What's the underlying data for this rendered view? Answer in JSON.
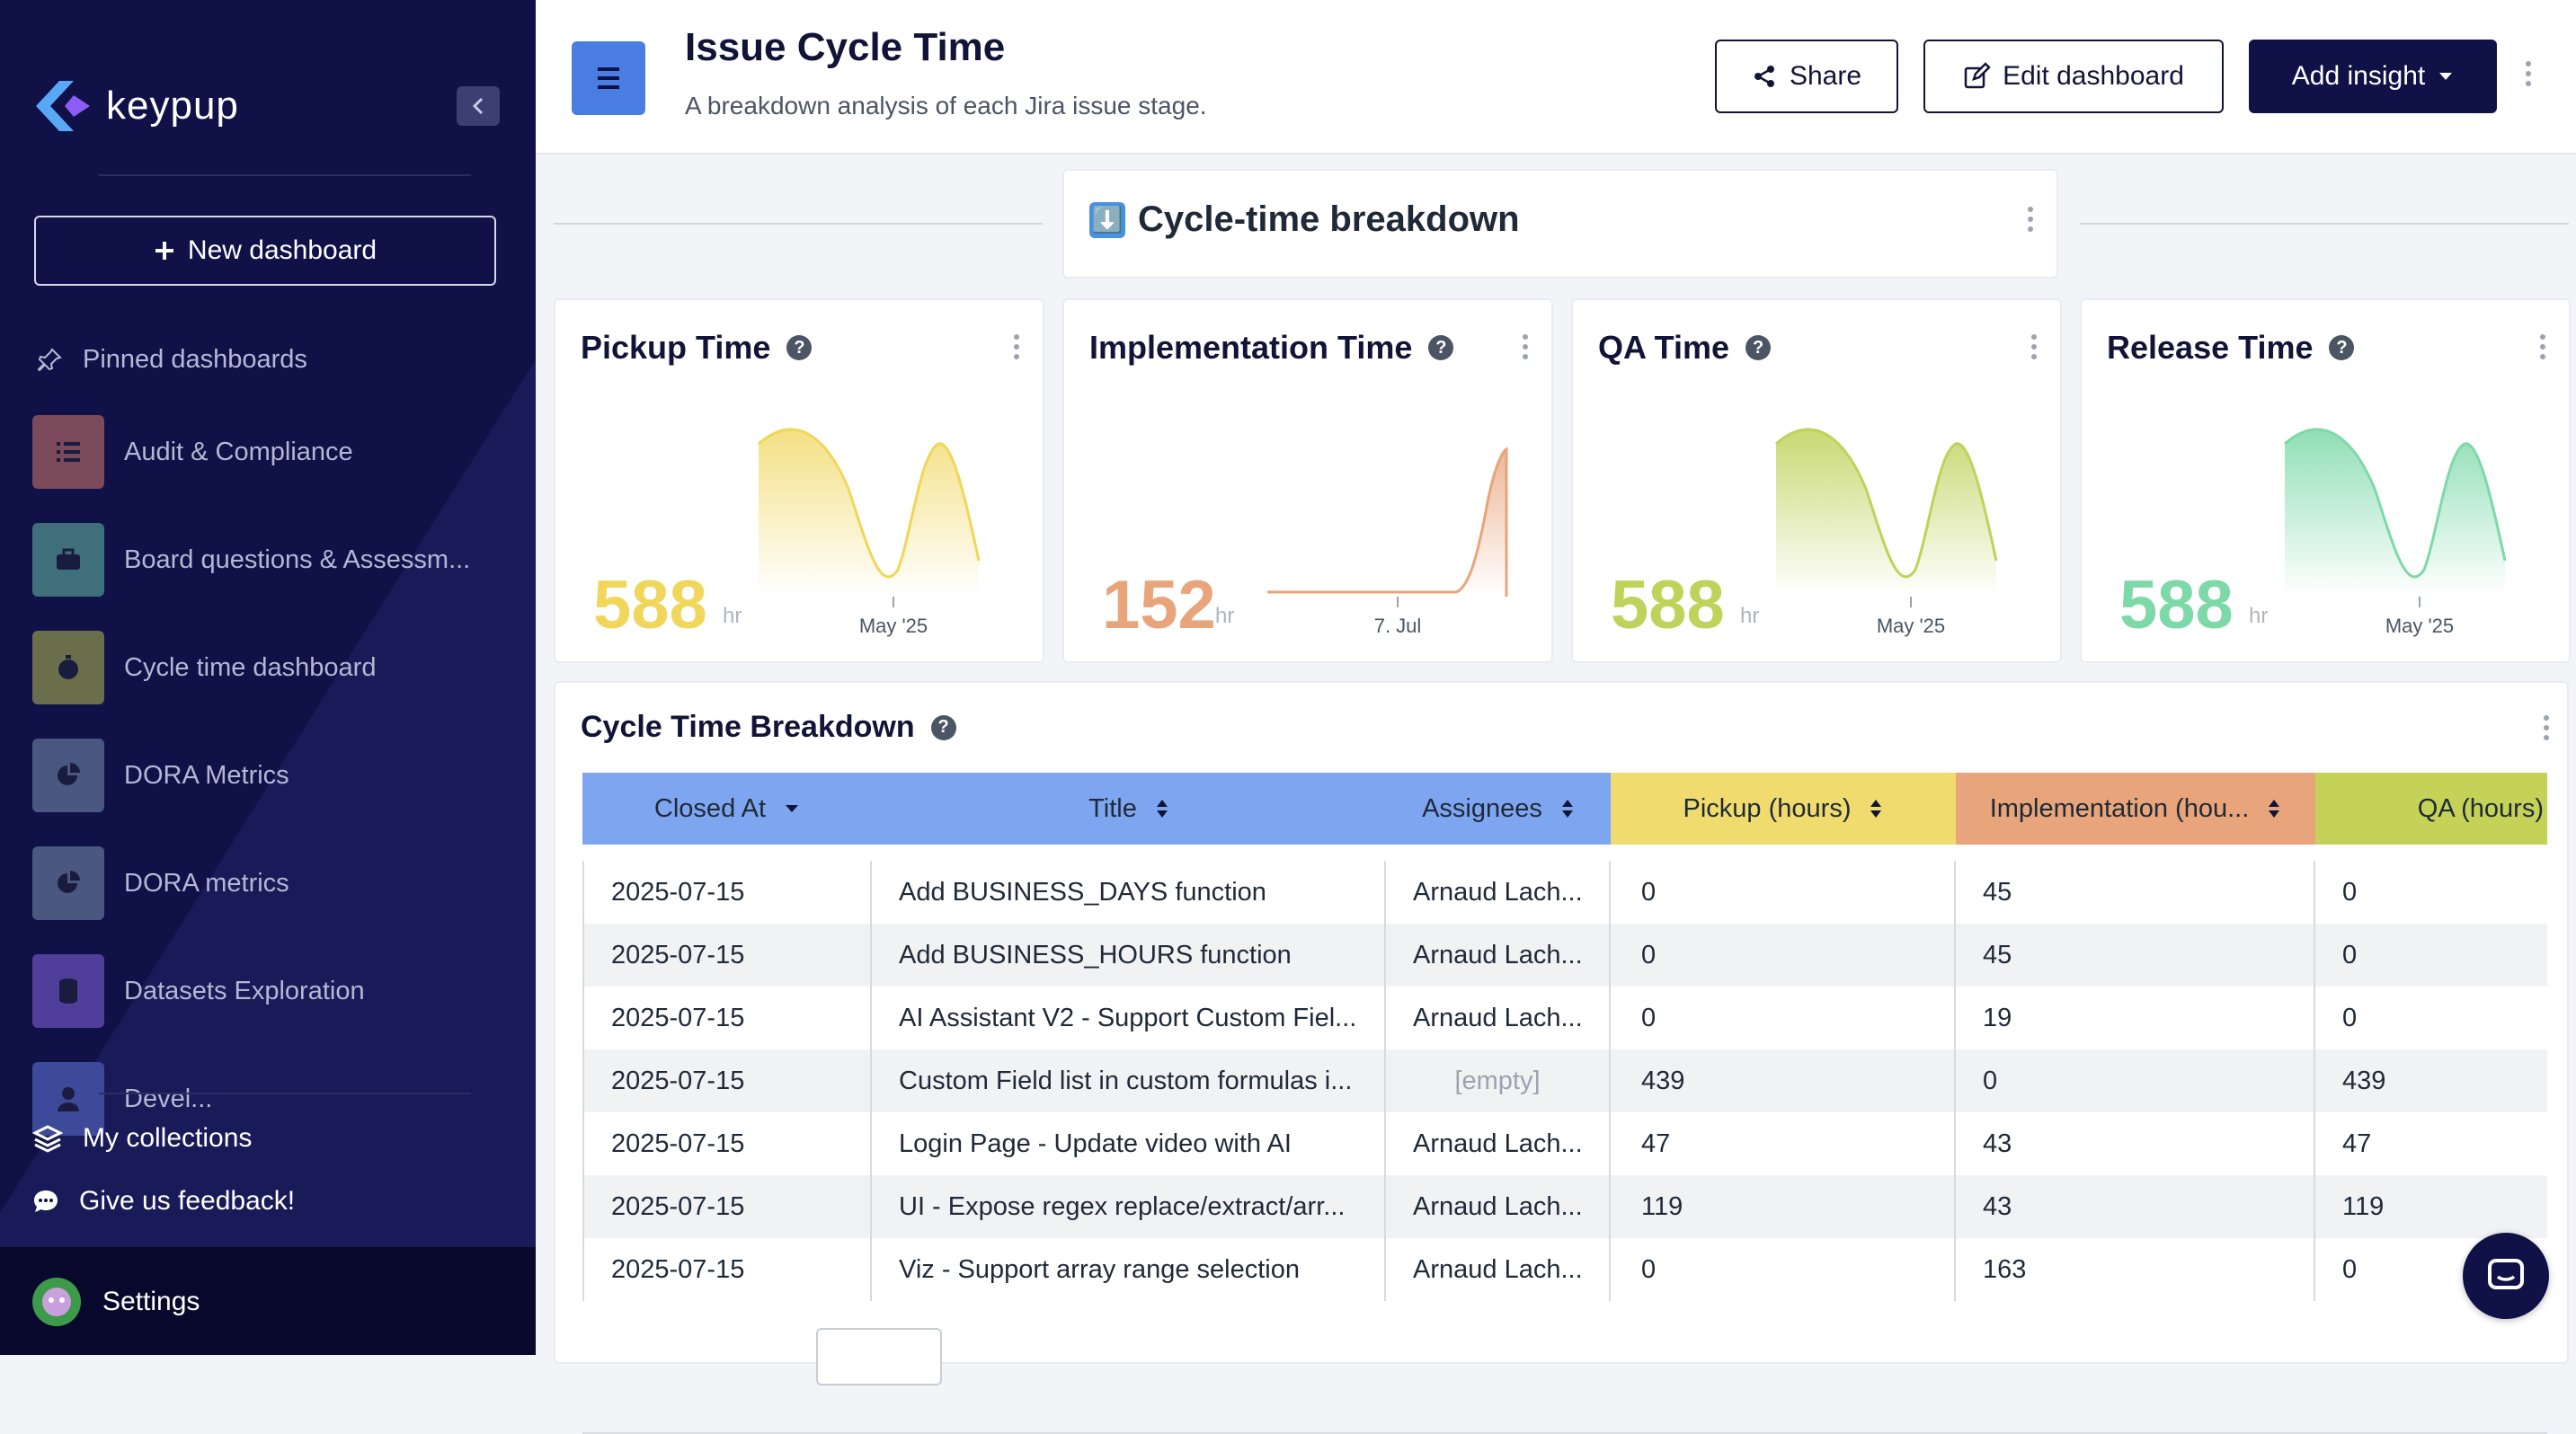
{
  "sidebar": {
    "logo_text": "keypup",
    "new_dashboard": "New dashboard",
    "pinned_label": "Pinned dashboards",
    "items": [
      {
        "label": "Audit & Compliance",
        "icon": "checklist-icon",
        "color": "#7a4a5a"
      },
      {
        "label": "Board questions & Assessm...",
        "icon": "briefcase-icon",
        "color": "#3f6f7a"
      },
      {
        "label": "Cycle time dashboard",
        "icon": "stopwatch-icon",
        "color": "#6b6e4a"
      },
      {
        "label": "DORA Metrics",
        "icon": "pie-chart-icon",
        "color": "#4a5780"
      },
      {
        "label": "DORA metrics",
        "icon": "pie-chart-icon",
        "color": "#4a5780"
      },
      {
        "label": "Datasets Exploration",
        "icon": "database-icon",
        "color": "#4f3f9a"
      },
      {
        "label": "Devel...",
        "icon": "user-icon",
        "color": "#3d4a9a"
      }
    ],
    "collections": "My collections",
    "feedback": "Give us feedback!",
    "settings": "Settings"
  },
  "header": {
    "title": "Issue Cycle Time",
    "subtitle": "A breakdown analysis of each Jira issue stage.",
    "share": "Share",
    "edit": "Edit dashboard",
    "add_insight": "Add insight"
  },
  "section": {
    "emoji": "⬇️",
    "title": "Cycle-time breakdown"
  },
  "kpis": [
    {
      "title": "Pickup Time",
      "value": "588",
      "unit": "hr",
      "axis": "May '25",
      "color": "#f0d65a"
    },
    {
      "title": "Implementation Time",
      "value": "152",
      "unit": "hr",
      "axis": "7. Jul",
      "color": "#e8a47a"
    },
    {
      "title": "QA Time",
      "value": "588",
      "unit": "hr",
      "axis": "May '25",
      "color": "#bfd25a"
    },
    {
      "title": "Release Time",
      "value": "588",
      "unit": "hr",
      "axis": "May '25",
      "color": "#7dd9a8"
    }
  ],
  "breakdown": {
    "title": "Cycle Time Breakdown",
    "columns": [
      "Closed At",
      "Title",
      "Assignees",
      "Pickup (hours)",
      "Implementation (hou...",
      "QA (hours)"
    ],
    "rows": [
      [
        "2025-07-15",
        "Add BUSINESS_DAYS function",
        "Arnaud Lach...",
        "0",
        "45",
        "0"
      ],
      [
        "2025-07-15",
        "Add BUSINESS_HOURS function",
        "Arnaud Lach...",
        "0",
        "45",
        "0"
      ],
      [
        "2025-07-15",
        "AI Assistant V2 - Support Custom Fiel...",
        "Arnaud Lach...",
        "0",
        "19",
        "0"
      ],
      [
        "2025-07-15",
        "Custom Field list in custom formulas i...",
        "[empty]",
        "439",
        "0",
        "439"
      ],
      [
        "2025-07-15",
        "Login Page - Update video with AI",
        "Arnaud Lach...",
        "47",
        "43",
        "47"
      ],
      [
        "2025-07-15",
        "UI - Expose regex replace/extract/arr...",
        "Arnaud Lach...",
        "119",
        "43",
        "119"
      ],
      [
        "2025-07-15",
        "Viz - Support array range selection",
        "Arnaud Lach...",
        "0",
        "163",
        "0"
      ]
    ]
  }
}
